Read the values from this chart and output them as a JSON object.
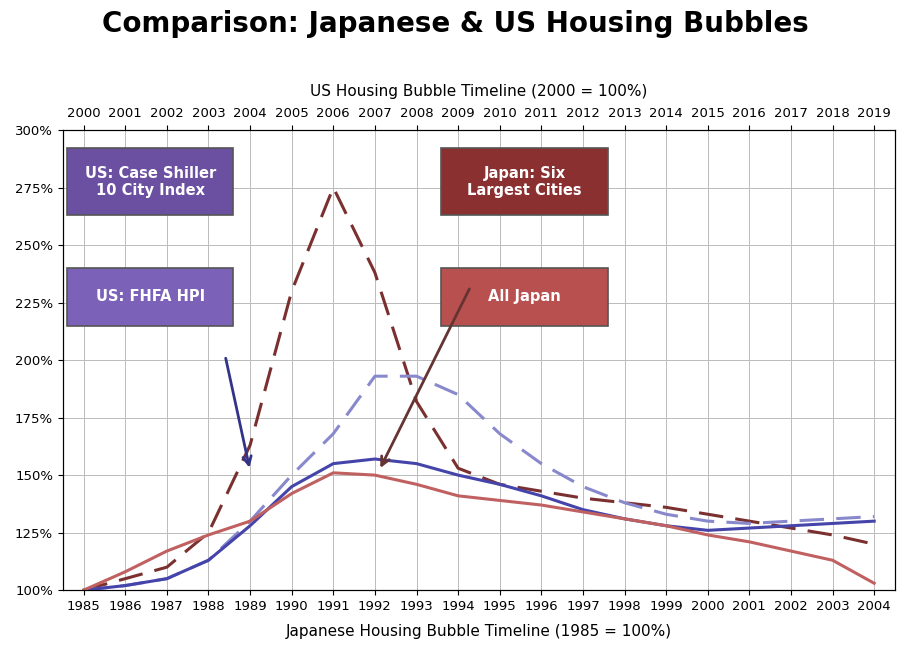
{
  "title": "Comparison: Japanese & US Housing Bubbles",
  "top_xlabel": "US Housing Bubble Timeline (2000 = 100%)",
  "bottom_xlabel": "Japanese Housing Bubble Timeline (1985 = 100%)",
  "japan_years": [
    1985,
    1986,
    1987,
    1988,
    1989,
    1990,
    1991,
    1992,
    1993,
    1994,
    1995,
    1996,
    1997,
    1998,
    1999,
    2000,
    2001,
    2002,
    2003,
    2004
  ],
  "us_years": [
    2000,
    2001,
    2002,
    2003,
    2004,
    2005,
    2006,
    2007,
    2008,
    2009,
    2010,
    2011,
    2012,
    2013,
    2014,
    2015,
    2016,
    2017,
    2018,
    2019
  ],
  "japan_six_dashed": [
    100,
    105,
    110,
    125,
    163,
    230,
    275,
    238,
    182,
    153,
    146,
    143,
    140,
    138,
    136,
    133,
    130,
    127,
    124,
    120
  ],
  "fhfa_dashed": [
    100,
    102,
    105,
    113,
    130,
    150,
    168,
    193,
    193,
    185,
    168,
    155,
    145,
    138,
    133,
    130,
    129,
    130,
    131,
    132
  ],
  "case_shiller_solid": [
    100,
    102,
    105,
    113,
    128,
    145,
    155,
    157,
    155,
    150,
    146,
    141,
    135,
    131,
    128,
    126,
    127,
    128,
    129,
    130
  ],
  "all_japan_solid": [
    100,
    108,
    117,
    124,
    130,
    142,
    151,
    150,
    146,
    141,
    139,
    137,
    134,
    131,
    128,
    124,
    121,
    117,
    113,
    103
  ],
  "japan_six_color": "#7B3030",
  "fhfa_color": "#8888CC",
  "case_shiller_color": "#4444AA",
  "all_japan_color": "#C06060",
  "label_box_cs_color": "#6B4FA0",
  "label_box_fhfa_color": "#7B62B8",
  "label_box_j6_color": "#8B3030",
  "label_box_aj_color": "#B85050",
  "ylim": [
    100,
    300
  ],
  "yticks": [
    100,
    125,
    150,
    175,
    200,
    225,
    250,
    275,
    300
  ],
  "background_color": "#FFFFFF",
  "grid_color": "#BBBBBB",
  "title_fontsize": 20,
  "label_fontsize": 11,
  "tick_fontsize": 9.5
}
